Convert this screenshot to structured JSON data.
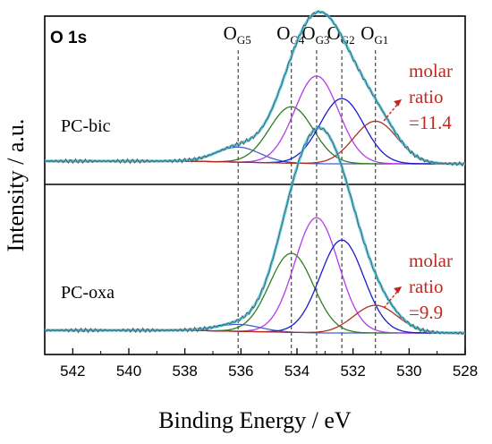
{
  "chart_data": {
    "type": "line",
    "title": "O 1s",
    "xlabel": "Binding Energy / eV",
    "ylabel": "Intensity / a.u.",
    "xlim": [
      543,
      528
    ],
    "x_reversed": true,
    "x_ticks": [
      542,
      540,
      538,
      536,
      534,
      532,
      530,
      528
    ],
    "y_ticks_shown": false,
    "reference_lines": [
      {
        "sub": "G5",
        "x": 536.1
      },
      {
        "sub": "G4",
        "x": 534.2
      },
      {
        "sub": "G3",
        "x": 533.3
      },
      {
        "sub": "G2",
        "x": 532.4
      },
      {
        "sub": "G1",
        "x": 531.2
      }
    ],
    "ref_prefix": "O",
    "panels": [
      {
        "label": "PC-bic",
        "annotation": [
          "molar",
          "ratio",
          "=11.4"
        ],
        "components": [
          {
            "component": "OG5",
            "center_eV": 536.1,
            "relative_height": 0.12,
            "color": "#4060d0"
          },
          {
            "component": "OG4",
            "center_eV": 534.2,
            "relative_height": 0.45,
            "color": "#2e7d1e"
          },
          {
            "component": "OG3",
            "center_eV": 533.3,
            "relative_height": 0.7,
            "color": "#b43ce6"
          },
          {
            "component": "OG2",
            "center_eV": 532.4,
            "relative_height": 0.52,
            "color": "#1a1ad0"
          },
          {
            "component": "OG1",
            "center_eV": 531.2,
            "relative_height": 0.34,
            "color": "#b03020"
          }
        ]
      },
      {
        "label": "PC-oxa",
        "annotation": [
          "molar",
          "ratio",
          "=9.9"
        ],
        "components": [
          {
            "component": "OG5",
            "center_eV": 536.1,
            "relative_height": 0.05,
            "color": "#4060d0"
          },
          {
            "component": "OG4",
            "center_eV": 534.2,
            "relative_height": 0.57,
            "color": "#2e7d1e"
          },
          {
            "component": "OG3",
            "center_eV": 533.3,
            "relative_height": 0.83,
            "color": "#b43ce6"
          },
          {
            "component": "OG2",
            "center_eV": 532.4,
            "relative_height": 0.67,
            "color": "#1a1ad0"
          },
          {
            "component": "OG1",
            "center_eV": 531.2,
            "relative_height": 0.2,
            "color": "#b03020"
          }
        ]
      }
    ],
    "colors": {
      "envelope": "#40c8e0",
      "raw": "#555555",
      "background": "#777777",
      "annotation": "#c0281e"
    }
  }
}
